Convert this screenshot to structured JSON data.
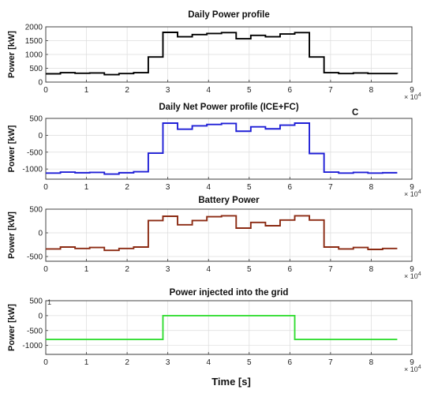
{
  "figure": {
    "xlabel": "Time [s]",
    "x_ticks": [
      "0",
      "1",
      "2",
      "3",
      "4",
      "5",
      "6",
      "7",
      "8",
      "9"
    ],
    "x_exponent_base": "× 10",
    "x_exponent_power": "4",
    "stray_mark_panel2": "C",
    "stray_mark_panel4": "1"
  },
  "chart_data": [
    {
      "type": "line",
      "title": "Daily Power profile",
      "ylabel": "Power [kW]",
      "xlim": [
        0,
        90000
      ],
      "ylim": [
        0,
        2000
      ],
      "y_ticks": [
        "0",
        "500",
        "1000",
        "1500",
        "2000"
      ],
      "y_tick_values": [
        0,
        500,
        1000,
        1500,
        2000
      ],
      "grid": true,
      "series": [
        {
          "color": "#000000",
          "x": [
            0,
            3600,
            7200,
            10800,
            14400,
            18000,
            21600,
            25200,
            28800,
            32400,
            36000,
            39600,
            43200,
            46800,
            50400,
            54000,
            57600,
            61200,
            64800,
            68400,
            72000,
            75600,
            79200,
            82800,
            86400
          ],
          "values": [
            300,
            340,
            320,
            330,
            270,
            310,
            340,
            910,
            1800,
            1640,
            1720,
            1760,
            1790,
            1570,
            1690,
            1640,
            1740,
            1790,
            910,
            340,
            310,
            330,
            310,
            310,
            300
          ]
        }
      ]
    },
    {
      "type": "line",
      "title": "Daily Net Power profile (ICE+FC)",
      "ylabel": "Power [kW]",
      "xlim": [
        0,
        90000
      ],
      "ylim": [
        -1300,
        500
      ],
      "y_ticks": [
        "-1000",
        "-500",
        "0",
        "500"
      ],
      "y_tick_values": [
        -1000,
        -500,
        0,
        500
      ],
      "grid": true,
      "series": [
        {
          "color": "#1f1fd6",
          "x": [
            0,
            3600,
            7200,
            10800,
            14400,
            18000,
            21600,
            25200,
            28800,
            32400,
            36000,
            39600,
            43200,
            46800,
            50400,
            54000,
            57600,
            61200,
            64800,
            68400,
            72000,
            75600,
            79200,
            82800,
            86400
          ],
          "values": [
            -1120,
            -1090,
            -1110,
            -1100,
            -1150,
            -1110,
            -1080,
            -530,
            360,
            180,
            280,
            320,
            350,
            120,
            250,
            190,
            300,
            360,
            -540,
            -1090,
            -1120,
            -1100,
            -1120,
            -1110,
            -1110
          ]
        }
      ]
    },
    {
      "type": "line",
      "title": "Battery Power",
      "ylabel": "Power [kW]",
      "xlim": [
        0,
        90000
      ],
      "ylim": [
        -600,
        500
      ],
      "y_ticks": [
        "-500",
        "0",
        "500"
      ],
      "y_tick_values": [
        -500,
        0,
        500
      ],
      "grid": true,
      "series": [
        {
          "color": "#8b2a12",
          "x": [
            0,
            3600,
            7200,
            10800,
            14400,
            18000,
            21600,
            25200,
            28800,
            32400,
            36000,
            39600,
            43200,
            46800,
            50400,
            54000,
            57600,
            61200,
            64800,
            68400,
            72000,
            75600,
            79200,
            82800,
            86400
          ],
          "values": [
            -340,
            -300,
            -330,
            -310,
            -370,
            -330,
            -300,
            260,
            350,
            170,
            260,
            340,
            360,
            100,
            220,
            150,
            270,
            360,
            270,
            -300,
            -340,
            -310,
            -350,
            -330,
            -330
          ]
        }
      ]
    },
    {
      "type": "line",
      "title": "Power injected into the grid",
      "ylabel": "Power [kW]",
      "xlim": [
        0,
        90000
      ],
      "ylim": [
        -1300,
        500
      ],
      "y_ticks": [
        "-1000",
        "-500",
        "0",
        "500"
      ],
      "y_tick_values": [
        -1000,
        -500,
        0,
        500
      ],
      "grid": true,
      "series": [
        {
          "color": "#33dd33",
          "x": [
            0,
            28800,
            61200,
            86400
          ],
          "values": [
            -800,
            0,
            -800,
            -800
          ]
        }
      ]
    }
  ]
}
